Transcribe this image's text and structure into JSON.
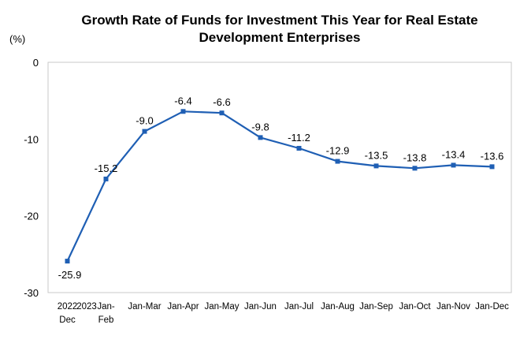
{
  "chart_data": {
    "type": "line",
    "title_lines": [
      "Growth Rate of Funds for Investment This Year for Real Estate",
      "Development Enterprises"
    ],
    "y_unit": "(%)",
    "xlabel": "",
    "ylabel": "",
    "ylim": [
      -30,
      0
    ],
    "yticks": [
      0,
      -10,
      -20,
      -30
    ],
    "grid": false,
    "legend": "none",
    "categories": [
      [
        "2022",
        "Dec"
      ],
      [
        "Jan-",
        "Feb"
      ],
      [
        "Jan-Mar"
      ],
      [
        "Jan-Apr"
      ],
      [
        "Jan-May"
      ],
      [
        "Jan-Jun"
      ],
      [
        "Jan-Jul"
      ],
      [
        "Jan-Aug"
      ],
      [
        "Jan-Sep"
      ],
      [
        "Jan-Oct"
      ],
      [
        "Jan-Nov"
      ],
      [
        "Jan-Dec"
      ]
    ],
    "category_prefix": [
      "",
      "2023",
      "",
      "",
      "",
      "",
      "",
      "",
      "",
      "",
      "",
      ""
    ],
    "series": [
      {
        "values": [
          -25.9,
          -15.2,
          -9.0,
          -6.4,
          -6.6,
          -9.8,
          -11.2,
          -12.9,
          -13.5,
          -13.8,
          -13.4,
          -13.6
        ],
        "labels": [
          "-25.9",
          "-15.2",
          "-9.0",
          "-6.4",
          "-6.6",
          "-9.8",
          "-11.2",
          "-12.9",
          "-13.5",
          "-13.8",
          "-13.4",
          "-13.6"
        ],
        "color": "#1f5fb4"
      }
    ]
  }
}
